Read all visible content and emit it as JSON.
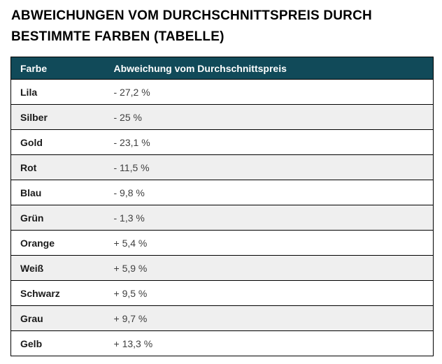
{
  "title": {
    "line1": "ABWEICHUNGEN VOM DURCHSCHNITTSPREIS DURCH",
    "line2": "BESTIMMTE FARBEN (TABELLE)"
  },
  "colors": {
    "header_bg": "#114a59",
    "header_text": "#ffffff",
    "row_bg": "#ffffff",
    "row_alt_bg": "#efefef",
    "border": "#000000",
    "title_text": "#000000",
    "label_text": "#1a1a1a",
    "value_text": "#3f3f3f"
  },
  "table": {
    "columns": {
      "farbe": "Farbe",
      "abweichung": "Abweichung vom Durchschnittspreis"
    },
    "rows": [
      {
        "farbe": "Lila",
        "abweichung": "- 27,2 %"
      },
      {
        "farbe": "Silber",
        "abweichung": "- 25 %"
      },
      {
        "farbe": "Gold",
        "abweichung": "- 23,1 %"
      },
      {
        "farbe": "Rot",
        "abweichung": "- 11,5 %"
      },
      {
        "farbe": "Blau",
        "abweichung": "- 9,8 %"
      },
      {
        "farbe": "Grün",
        "abweichung": "- 1,3 %"
      },
      {
        "farbe": "Orange",
        "abweichung": "+ 5,4 %"
      },
      {
        "farbe": "Weiß",
        "abweichung": "+ 5,9 %"
      },
      {
        "farbe": "Schwarz",
        "abweichung": "+ 9,5 %"
      },
      {
        "farbe": "Grau",
        "abweichung": "+ 9,7 %"
      },
      {
        "farbe": "Gelb",
        "abweichung": "+ 13,3 %"
      }
    ]
  },
  "chart_data": {
    "type": "table",
    "title": "Abweichungen vom Durchschnittspreis durch bestimmte Farben (Tabelle)",
    "columns": [
      "Farbe",
      "Abweichung vom Durchschnittspreis"
    ],
    "categories": [
      "Lila",
      "Silber",
      "Gold",
      "Rot",
      "Blau",
      "Grün",
      "Orange",
      "Weiß",
      "Schwarz",
      "Grau",
      "Gelb"
    ],
    "values_percent": [
      -27.2,
      -25,
      -23.1,
      -11.5,
      -9.8,
      -1.3,
      5.4,
      5.9,
      9.5,
      9.7,
      13.3
    ],
    "values_text": [
      "- 27,2 %",
      "- 25 %",
      "- 23,1 %",
      "- 11,5 %",
      "- 9,8 %",
      "- 1,3 %",
      "+ 5,4 %",
      "+ 5,9 %",
      "+ 9,5 %",
      "+ 9,7 %",
      "+ 13,3 %"
    ],
    "layout": {
      "zebra_striping": true,
      "header_style": "dark-teal",
      "value_format": "signed percent, comma decimal"
    }
  }
}
